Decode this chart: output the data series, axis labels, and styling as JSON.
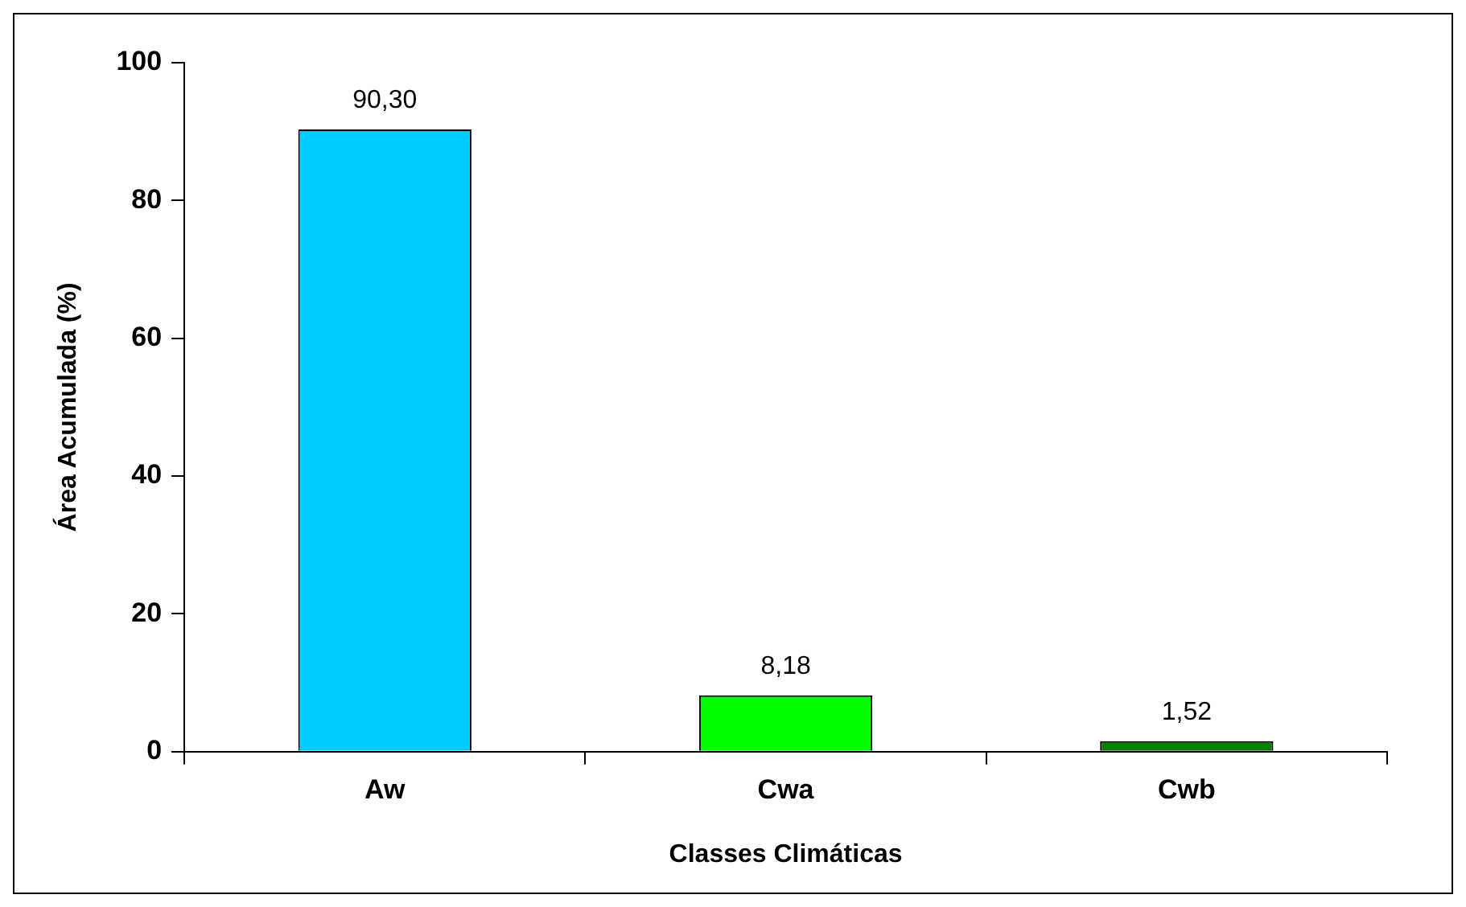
{
  "chart_data": {
    "type": "bar",
    "xlabel": "Classes Climáticas",
    "ylabel": "Área Acumulada (%)",
    "categories": [
      "Aw",
      "Cwa",
      "Cwb"
    ],
    "values": [
      90.3,
      8.18,
      1.52
    ],
    "colors": [
      "#00ccff",
      "#00ff00",
      "#008000"
    ],
    "value_labels": [
      "90,30",
      "8,18",
      "1,52"
    ],
    "ylim": [
      0,
      100
    ],
    "yticks": [
      0,
      20,
      40,
      60,
      80,
      100
    ],
    "grid": false,
    "legend": false
  }
}
